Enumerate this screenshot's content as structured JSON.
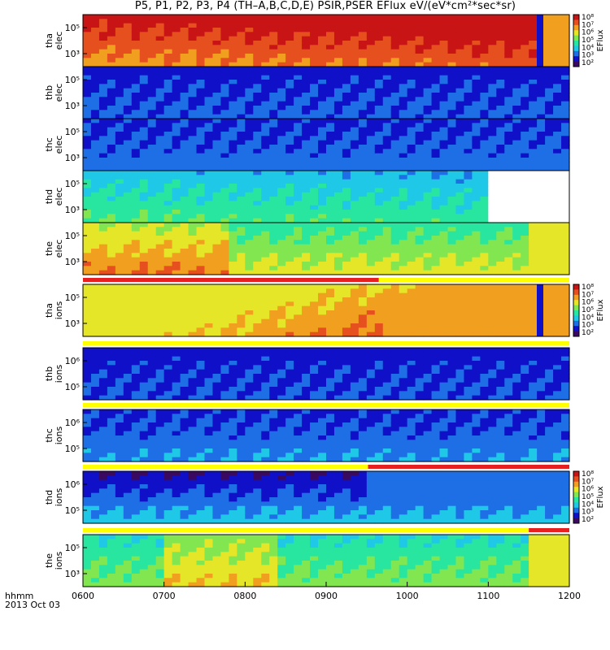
{
  "title": "P5, P1, P2, P3, P4 (TH–A,B,C,D,E) PSIR,PSER EFlux eV/(eV*cm²*sec*sr)",
  "x_axis": {
    "label_line1": "hhmm",
    "label_line2": "2013 Oct 03",
    "ticks": [
      "0600",
      "0700",
      "0800",
      "0900",
      "1000",
      "1100",
      "1200"
    ]
  },
  "colorbar_label": "EFlux",
  "colorbar_ticks": [
    "10⁸",
    "10⁷",
    "10⁶",
    "10⁵",
    "10⁴",
    "10³",
    "10²"
  ],
  "colors": {
    "palette": [
      "#3a0a60",
      "#1010c8",
      "#1e6ee6",
      "#1ec8e6",
      "#28e6a0",
      "#82e650",
      "#e6e628",
      "#f0a01e",
      "#e6501e",
      "#c81414"
    ],
    "flag_red": "#e62020",
    "flag_yellow": "#ffff00"
  },
  "chart_data": {
    "type": "heatmap",
    "x_range": [
      "0600",
      "1200"
    ],
    "y_scale": "log",
    "panels": [
      {
        "label1": "tha",
        "label2": "elec",
        "yticks": [
          "10⁵",
          "10³"
        ],
        "colorbar": true,
        "segments": [
          {
            "start": "0600",
            "end": "0945",
            "level": "high"
          },
          {
            "start": "0945",
            "end": "1135",
            "level": "mid-high"
          },
          {
            "start": "1135",
            "end": "1200",
            "level": "mid"
          }
        ]
      },
      {
        "label1": "thb",
        "label2": "elec",
        "yticks": [
          "10⁵",
          "10³"
        ],
        "colorbar": false,
        "segments": [
          {
            "start": "0600",
            "end": "1200",
            "level": "low"
          }
        ]
      },
      {
        "label1": "thc",
        "label2": "elec",
        "yticks": [
          "10⁵",
          "10³"
        ],
        "colorbar": false,
        "segments": [
          {
            "start": "0600",
            "end": "1200",
            "level": "low"
          }
        ]
      },
      {
        "label1": "thd",
        "label2": "elec",
        "yticks": [
          "10⁵",
          "10³"
        ],
        "colorbar": false,
        "segments": [
          {
            "start": "0600",
            "end": "0931",
            "level": "mid"
          },
          {
            "start": "0931",
            "end": "1058",
            "level": "mid"
          },
          {
            "start": "1058",
            "end": "1200",
            "level": "no data"
          }
        ]
      },
      {
        "label1": "the",
        "label2": "elec",
        "yticks": [
          "10⁵",
          "10³"
        ],
        "colorbar": false,
        "segments": [
          {
            "start": "0600",
            "end": "1130",
            "level": "mid-high"
          },
          {
            "start": "1130",
            "end": "1200",
            "level": "high"
          }
        ]
      },
      {
        "label1": "tha",
        "label2": "ions",
        "yticks": [
          "10⁵",
          "10³"
        ],
        "colorbar": true,
        "segments": [
          {
            "start": "0600",
            "end": "0945",
            "level": "high"
          },
          {
            "start": "0945",
            "end": "1200",
            "level": "mid"
          }
        ]
      },
      {
        "label1": "thb",
        "label2": "ions",
        "yticks": [
          "10⁶",
          "10⁵"
        ],
        "colorbar": false,
        "segments": [
          {
            "start": "0600",
            "end": "1200",
            "level": "low"
          }
        ]
      },
      {
        "label1": "thc",
        "label2": "ions",
        "yticks": [
          "10⁶",
          "10⁵"
        ],
        "colorbar": false,
        "segments": [
          {
            "start": "0600",
            "end": "1200",
            "level": "low"
          }
        ]
      },
      {
        "label1": "thd",
        "label2": "ions",
        "yticks": [
          "10⁶",
          "10⁵"
        ],
        "colorbar": true,
        "segments": [
          {
            "start": "0600",
            "end": "0931",
            "level": "low"
          },
          {
            "start": "0931",
            "end": "1200",
            "level": "mid"
          }
        ]
      },
      {
        "label1": "the",
        "label2": "ions",
        "yticks": [
          "10⁵",
          "10³"
        ],
        "colorbar": false,
        "segments": [
          {
            "start": "0600",
            "end": "1130",
            "level": "mid"
          },
          {
            "start": "1130",
            "end": "1200",
            "level": "high"
          }
        ]
      }
    ],
    "flags": [
      {
        "after_panel": 4,
        "segments": [
          {
            "start": "0600",
            "end": "0939",
            "color": "red"
          },
          {
            "start": "0939",
            "end": "1200",
            "color": "yellow"
          }
        ]
      },
      {
        "after_panel": 5,
        "segments": [
          {
            "start": "0600",
            "end": "1200",
            "color": "yellow"
          }
        ]
      },
      {
        "after_panel": 6,
        "segments": [
          {
            "start": "0600",
            "end": "1200",
            "color": "yellow"
          }
        ]
      },
      {
        "after_panel": 7,
        "segments": [
          {
            "start": "0600",
            "end": "0931",
            "color": "yellow"
          },
          {
            "start": "0931",
            "end": "1200",
            "color": "red"
          }
        ]
      },
      {
        "after_panel": 8,
        "segments": [
          {
            "start": "0600",
            "end": "1130",
            "color": "yellow"
          },
          {
            "start": "1130",
            "end": "1200",
            "color": "red"
          }
        ]
      }
    ]
  }
}
